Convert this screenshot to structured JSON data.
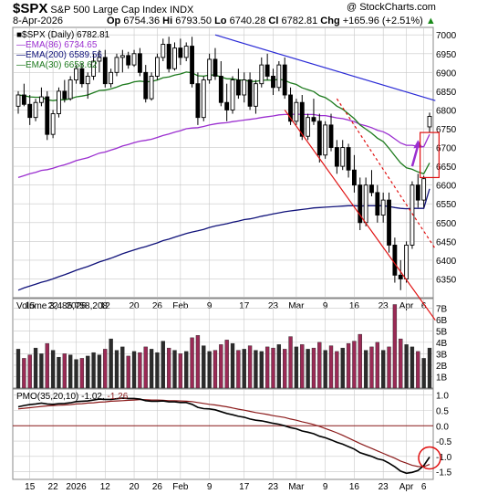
{
  "header": {
    "symbol": "$SPX",
    "name": "S&P 500 Large Cap Index",
    "exchange": "INDX",
    "date": "8-Apr-2026",
    "watermark": "@ StockCharts.com",
    "open_label": "Op",
    "open": "6754.36",
    "high_label": "Hi",
    "high": "6793.50",
    "low_label": "Lo",
    "low": "6740.28",
    "close": "6782.81",
    "chg_label": "Chg",
    "chg": "+165.96 (+2.51%)",
    "chg_arrow": "▲"
  },
  "legend": [
    {
      "text": "■$SPX (Daily) 6782.81",
      "color": "#000000"
    },
    {
      "text": "—EMA(86) 6734.65",
      "color": "#9b2fd0"
    },
    {
      "text": "—EMA(200) 6589.56",
      "color": "#10127a"
    },
    {
      "text": "—EMA(30) 6658.62",
      "color": "#1d7a1d"
    }
  ],
  "volume_label": "Volume 3,485,758,208",
  "pmo_label": {
    "prefix": "PMO(35,20,10)",
    "v1": "-1.02",
    "sep": ",",
    "v2": "-1.26"
  },
  "colors": {
    "up": "#000000",
    "down": "#000000",
    "vol_up": "#2b2b2b",
    "vol_down": "#9a2a55",
    "ema86": "#9b2fd0",
    "ema200": "#10127a",
    "ema30": "#1d7a1d",
    "pmo": "#000000",
    "pmo_signal": "#8b1a1a",
    "trend_red": "#e01010",
    "trend_blue": "#2a2ad6",
    "annot_purple": "#9b2fd0",
    "grid": "#c8c8c8",
    "bg": "#ffffff"
  },
  "chart_data": {
    "type": "candlestick",
    "x_tick_labels": [
      "15",
      "22",
      "2026",
      "12",
      "20",
      "26",
      "Feb",
      "9",
      "17",
      "23",
      "Mar",
      "9",
      "16",
      "23",
      "Apr",
      "6"
    ],
    "price_axis": {
      "ticks": [
        "7000",
        "6950",
        "6900",
        "6850",
        "6800",
        "6750",
        "6700",
        "6650",
        "6600",
        "6550",
        "6500",
        "6450",
        "6400",
        "6350"
      ],
      "ylim": [
        6300,
        7020
      ],
      "grid": true
    },
    "volume_axis": {
      "ticks": [
        "7B",
        "6B",
        "5B",
        "4B",
        "3B",
        "2B",
        "1B"
      ],
      "ylim": [
        0,
        7.5
      ]
    },
    "pmo_axis": {
      "ticks": [
        "1.0",
        "0.5",
        "0.0",
        "-0.5",
        "-1.0",
        "-1.5"
      ],
      "ylim": [
        -1.75,
        1.2
      ],
      "zero_line": true
    },
    "candles": [
      [
        6810,
        6850,
        6790,
        6840
      ],
      [
        6840,
        6870,
        6810,
        6815
      ],
      [
        6815,
        6840,
        6760,
        6780
      ],
      [
        6780,
        6830,
        6770,
        6820
      ],
      [
        6820,
        6860,
        6810,
        6835
      ],
      [
        6835,
        6850,
        6720,
        6735
      ],
      [
        6735,
        6800,
        6725,
        6790
      ],
      [
        6790,
        6860,
        6780,
        6850
      ],
      [
        6850,
        6880,
        6820,
        6830
      ],
      [
        6830,
        6890,
        6825,
        6880
      ],
      [
        6880,
        6920,
        6870,
        6910
      ],
      [
        6910,
        6925,
        6860,
        6870
      ],
      [
        6870,
        6900,
        6830,
        6890
      ],
      [
        6890,
        6950,
        6880,
        6930
      ],
      [
        6930,
        6960,
        6900,
        6940
      ],
      [
        6940,
        6960,
        6860,
        6870
      ],
      [
        6870,
        6910,
        6860,
        6900
      ],
      [
        6900,
        6950,
        6890,
        6940
      ],
      [
        6940,
        6960,
        6900,
        6945
      ],
      [
        6945,
        6955,
        6910,
        6920
      ],
      [
        6920,
        6960,
        6915,
        6950
      ],
      [
        6950,
        6965,
        6890,
        6900
      ],
      [
        6900,
        6920,
        6820,
        6830
      ],
      [
        6830,
        6900,
        6825,
        6890
      ],
      [
        6890,
        6950,
        6880,
        6940
      ],
      [
        6940,
        6990,
        6930,
        6975
      ],
      [
        6975,
        6995,
        6900,
        6910
      ],
      [
        6910,
        6980,
        6905,
        6965
      ],
      [
        6965,
        6990,
        6920,
        6940
      ],
      [
        6940,
        6980,
        6930,
        6970
      ],
      [
        6970,
        6995,
        6860,
        6870
      ],
      [
        6870,
        6900,
        6760,
        6780
      ],
      [
        6780,
        6890,
        6770,
        6880
      ],
      [
        6880,
        6950,
        6870,
        6935
      ],
      [
        6935,
        6965,
        6880,
        6890
      ],
      [
        6890,
        6930,
        6810,
        6820
      ],
      [
        6820,
        6870,
        6770,
        6800
      ],
      [
        6800,
        6890,
        6790,
        6880
      ],
      [
        6880,
        6910,
        6830,
        6840
      ],
      [
        6840,
        6900,
        6820,
        6880
      ],
      [
        6880,
        6900,
        6800,
        6810
      ],
      [
        6810,
        6880,
        6790,
        6870
      ],
      [
        6870,
        6940,
        6860,
        6920
      ],
      [
        6920,
        6950,
        6880,
        6890
      ],
      [
        6890,
        6910,
        6840,
        6860
      ],
      [
        6860,
        6930,
        6850,
        6920
      ],
      [
        6920,
        6940,
        6830,
        6840
      ],
      [
        6840,
        6860,
        6760,
        6770
      ],
      [
        6770,
        6830,
        6760,
        6820
      ],
      [
        6820,
        6840,
        6720,
        6730
      ],
      [
        6730,
        6790,
        6720,
        6780
      ],
      [
        6780,
        6830,
        6760,
        6770
      ],
      [
        6770,
        6790,
        6660,
        6680
      ],
      [
        6680,
        6770,
        6670,
        6760
      ],
      [
        6760,
        6790,
        6690,
        6700
      ],
      [
        6700,
        6720,
        6630,
        6650
      ],
      [
        6650,
        6720,
        6640,
        6700
      ],
      [
        6700,
        6710,
        6620,
        6640
      ],
      [
        6640,
        6680,
        6580,
        6600
      ],
      [
        6600,
        6620,
        6480,
        6500
      ],
      [
        6500,
        6620,
        6490,
        6600
      ],
      [
        6600,
        6640,
        6570,
        6580
      ],
      [
        6580,
        6600,
        6500,
        6520
      ],
      [
        6520,
        6580,
        6500,
        6560
      ],
      [
        6560,
        6580,
        6420,
        6440
      ],
      [
        6440,
        6460,
        6340,
        6360
      ],
      [
        6360,
        6400,
        6320,
        6350
      ],
      [
        6350,
        6450,
        6340,
        6440
      ],
      [
        6440,
        6610,
        6430,
        6600
      ],
      [
        6600,
        6630,
        6540,
        6560
      ],
      [
        6560,
        6625,
        6540,
        6617
      ],
      [
        6755,
        6793,
        6740,
        6783
      ]
    ],
    "ema30": [
      6840,
      6838,
      6835,
      6834,
      6834,
      6827,
      6825,
      6827,
      6827,
      6830,
      6835,
      6837,
      6840,
      6846,
      6852,
      6853,
      6856,
      6861,
      6867,
      6870,
      6875,
      6877,
      6875,
      6876,
      6880,
      6886,
      6888,
      6893,
      6896,
      6901,
      6899,
      6891,
      6890,
      6893,
      6893,
      6888,
      6883,
      6883,
      6880,
      6880,
      6876,
      6876,
      6879,
      6880,
      6879,
      6882,
      6879,
      6872,
      6868,
      6859,
      6854,
      6849,
      6838,
      6833,
      6823,
      6810,
      6802,
      6790,
      6777,
      6760,
      6749,
      6738,
      6725,
      6716,
      6698,
      6678,
      6659,
      6646,
      6642,
      6635,
      6630,
      6659
    ],
    "ema86": [
      6620,
      6625,
      6630,
      6634,
      6639,
      6641,
      6645,
      6650,
      6654,
      6659,
      6665,
      6669,
      6673,
      6679,
      6685,
      6688,
      6693,
      6698,
      6704,
      6708,
      6713,
      6717,
      6719,
      6722,
      6727,
      6732,
      6736,
      6741,
      6745,
      6750,
      6752,
      6753,
      6756,
      6760,
      6763,
      6765,
      6766,
      6769,
      6771,
      6773,
      6775,
      6777,
      6780,
      6782,
      6784,
      6787,
      6788,
      6788,
      6789,
      6788,
      6788,
      6788,
      6785,
      6785,
      6782,
      6779,
      6777,
      6773,
      6769,
      6762,
      6758,
      6753,
      6746,
      6742,
      6734,
      6723,
      6712,
      6706,
      6706,
      6703,
      6702,
      6735
    ],
    "ema200": [
      6320,
      6326,
      6331,
      6336,
      6341,
      6345,
      6350,
      6356,
      6361,
      6367,
      6373,
      6378,
      6383,
      6389,
      6395,
      6400,
      6405,
      6411,
      6417,
      6422,
      6427,
      6432,
      6436,
      6441,
      6446,
      6452,
      6456,
      6461,
      6466,
      6471,
      6475,
      6478,
      6482,
      6487,
      6491,
      6494,
      6497,
      6501,
      6504,
      6508,
      6510,
      6513,
      6517,
      6520,
      6523,
      6526,
      6529,
      6531,
      6533,
      6535,
      6537,
      6539,
      6540,
      6541,
      6542,
      6543,
      6544,
      6545,
      6545,
      6544,
      6545,
      6545,
      6545,
      6545,
      6543,
      6540,
      6538,
      6537,
      6538,
      6538,
      6538,
      6590
    ],
    "volume": [
      3.4,
      2.6,
      2.9,
      3.5,
      3.0,
      3.9,
      3.3,
      2.7,
      3.0,
      2.9,
      2.5,
      2.6,
      2.8,
      3.1,
      2.9,
      3.4,
      4.3,
      3.3,
      3.6,
      2.8,
      3.2,
      3.1,
      3.6,
      3.4,
      3.1,
      4.1,
      3.5,
      3.3,
      3.0,
      3.2,
      4.4,
      4.6,
      3.7,
      3.2,
      3.3,
      3.8,
      4.2,
      3.9,
      3.3,
      3.4,
      3.7,
      3.3,
      3.2,
      3.6,
      3.5,
      3.8,
      3.4,
      4.5,
      3.6,
      3.8,
      3.4,
      3.5,
      4.0,
      3.3,
      3.7,
      3.2,
      3.5,
      3.9,
      4.1,
      4.7,
      3.3,
      3.6,
      4.0,
      3.3,
      3.6,
      7.3,
      4.3,
      3.8,
      3.6,
      3.2,
      2.6,
      3.5
    ],
    "pmo": [
      0.62,
      0.66,
      0.69,
      0.71,
      0.74,
      0.71,
      0.7,
      0.72,
      0.73,
      0.75,
      0.79,
      0.8,
      0.81,
      0.84,
      0.87,
      0.86,
      0.86,
      0.88,
      0.9,
      0.89,
      0.89,
      0.87,
      0.82,
      0.8,
      0.8,
      0.81,
      0.78,
      0.78,
      0.76,
      0.76,
      0.7,
      0.6,
      0.56,
      0.55,
      0.52,
      0.46,
      0.4,
      0.36,
      0.31,
      0.28,
      0.22,
      0.18,
      0.16,
      0.12,
      0.08,
      0.05,
      0.0,
      -0.06,
      -0.1,
      -0.17,
      -0.21,
      -0.26,
      -0.34,
      -0.39,
      -0.46,
      -0.54,
      -0.6,
      -0.68,
      -0.76,
      -0.88,
      -0.94,
      -1.0,
      -1.08,
      -1.12,
      -1.22,
      -1.34,
      -1.48,
      -1.55,
      -1.52,
      -1.46,
      -1.3,
      -1.02
    ],
    "pmo_signal": [
      0.55,
      0.57,
      0.59,
      0.61,
      0.63,
      0.65,
      0.66,
      0.67,
      0.68,
      0.69,
      0.71,
      0.72,
      0.74,
      0.75,
      0.77,
      0.78,
      0.8,
      0.81,
      0.82,
      0.83,
      0.84,
      0.85,
      0.85,
      0.84,
      0.84,
      0.83,
      0.82,
      0.82,
      0.81,
      0.8,
      0.79,
      0.76,
      0.73,
      0.7,
      0.68,
      0.65,
      0.62,
      0.58,
      0.54,
      0.51,
      0.47,
      0.43,
      0.4,
      0.37,
      0.33,
      0.3,
      0.27,
      0.22,
      0.18,
      0.13,
      0.09,
      0.04,
      -0.02,
      -0.09,
      -0.16,
      -0.23,
      -0.31,
      -0.4,
      -0.49,
      -0.58,
      -0.66,
      -0.74,
      -0.82,
      -0.9,
      -0.98,
      -1.06,
      -1.15,
      -1.22,
      -1.29,
      -1.33,
      -1.34,
      -1.26
    ],
    "annotations": [
      {
        "type": "trendline",
        "color": "red",
        "from": [
          46,
          6800
        ],
        "to": [
          72,
          6240
        ]
      },
      {
        "type": "trendline",
        "color": "red-dotted",
        "from": [
          55,
          6830
        ],
        "to": [
          72,
          6430
        ]
      },
      {
        "type": "trendline",
        "color": "blue",
        "from": [
          34,
          7000
        ],
        "to": [
          72,
          6825
        ]
      },
      {
        "type": "arrow",
        "color": "purple",
        "from": [
          68,
          6650
        ],
        "to": [
          69,
          6720
        ]
      },
      {
        "type": "box",
        "color": "red",
        "x": [
          70,
          72
        ],
        "y": [
          6620,
          6740
        ]
      },
      {
        "type": "circle",
        "color": "red",
        "panel": "pmo",
        "x": 71,
        "y": -1.05
      }
    ]
  }
}
